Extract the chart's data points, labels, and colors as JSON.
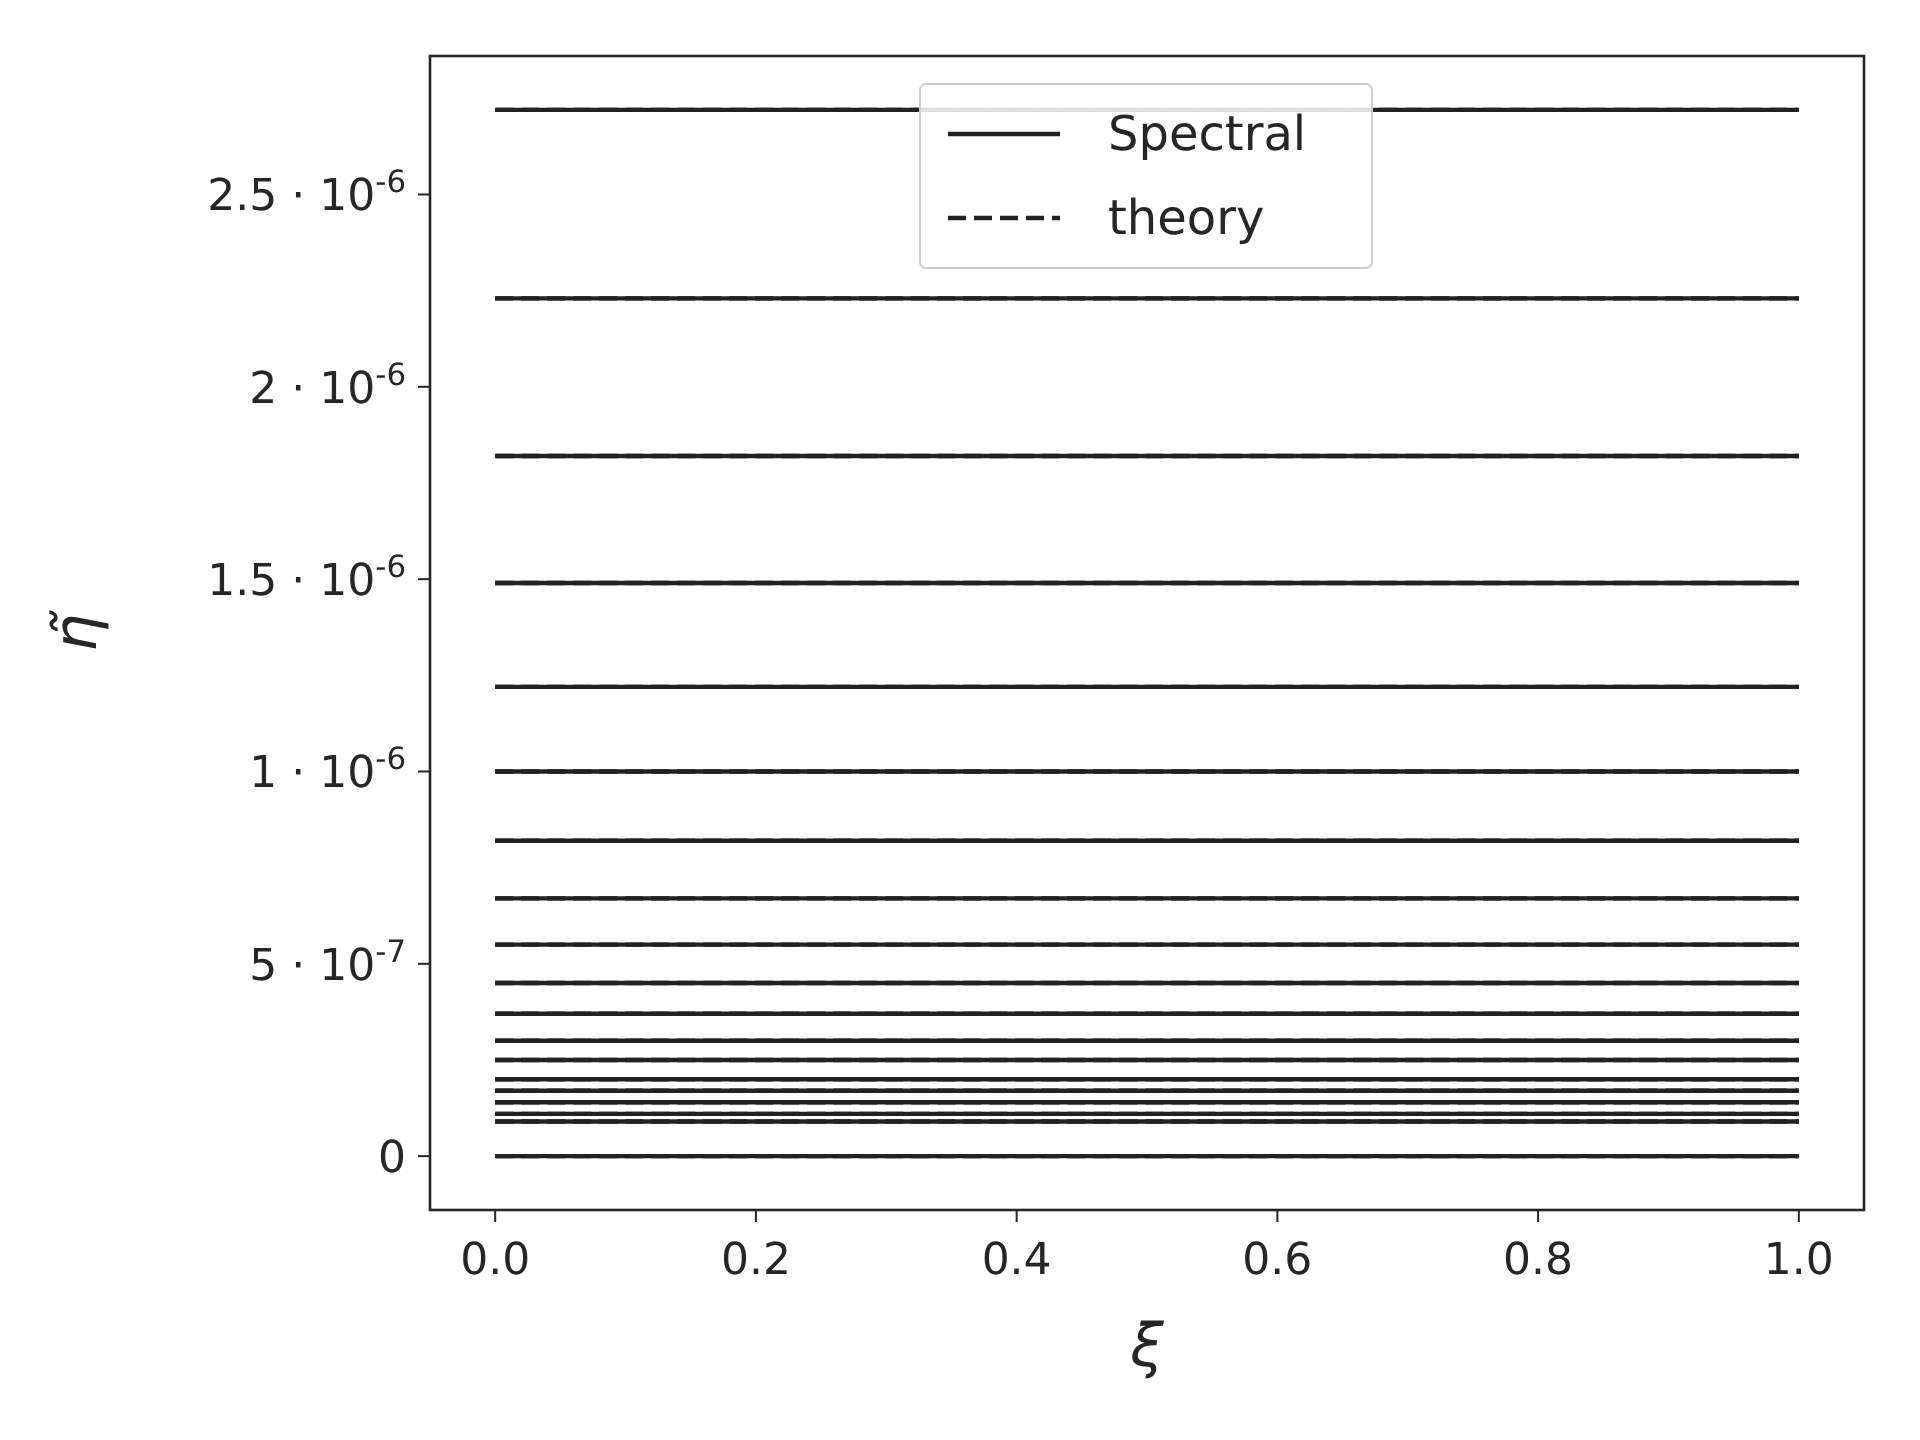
{
  "chart_data": {
    "type": "line",
    "xlabel": "ξ",
    "ylabel": "η̃",
    "x": [
      0,
      1
    ],
    "xlim": [
      -0.05,
      1.05
    ],
    "xticks": [
      {
        "value": 0,
        "label": "0.0"
      },
      0.2,
      0.4,
      0.6,
      0.8,
      {
        "value": 1,
        "label": "1.0"
      }
    ],
    "ylim": [
      -1.4e-07,
      2.86e-06
    ],
    "yticks": [
      0,
      {
        "value": 5e-07,
        "label": "5 · 10$^{-7}$"
      },
      {
        "value": 1e-06,
        "label": "1 · 10$^{-6}$"
      },
      {
        "value": 1.5e-06,
        "label": "1.5 · 10$^{-6}$"
      },
      {
        "value": 2e-06,
        "label": "2 · 10$^{-6}$"
      },
      {
        "value": 2.5e-06,
        "label": "2.5 · 10$^{-6}$"
      }
    ],
    "grid": false,
    "legend": "top",
    "marker": "none",
    "series": [
      {
        "name": "Spectral",
        "color": "#222222",
        "line_style": "solid",
        "values": [
          2.72e-06,
          2.72e-06
        ]
      },
      {
        "name": "theory",
        "color": "#222222",
        "line_style": "dashed",
        "values": [
          2.72e-06,
          2.72e-06
        ]
      },
      {
        "color": "#222222",
        "line_style": "solid",
        "values": [
          2.23e-06,
          2.23e-06
        ]
      },
      {
        "color": "#222222",
        "line_style": "dashed",
        "values": [
          2.23e-06,
          2.23e-06
        ]
      },
      {
        "color": "#222222",
        "line_style": "solid",
        "values": [
          1.82e-06,
          1.82e-06
        ]
      },
      {
        "color": "#222222",
        "line_style": "dashed",
        "values": [
          1.82e-06,
          1.82e-06
        ]
      },
      {
        "color": "#222222",
        "line_style": "solid",
        "values": [
          1.49e-06,
          1.49e-06
        ]
      },
      {
        "color": "#222222",
        "line_style": "dashed",
        "values": [
          1.49e-06,
          1.49e-06
        ]
      },
      {
        "color": "#222222",
        "line_style": "solid",
        "values": [
          1.22e-06,
          1.22e-06
        ]
      },
      {
        "color": "#222222",
        "line_style": "dashed",
        "values": [
          1.22e-06,
          1.22e-06
        ]
      },
      {
        "color": "#222222",
        "line_style": "solid",
        "values": [
          1e-06,
          1e-06
        ]
      },
      {
        "color": "#222222",
        "line_style": "dashed",
        "values": [
          1e-06,
          1e-06
        ]
      },
      {
        "color": "#222222",
        "line_style": "solid",
        "values": [
          8.2e-07,
          8.2e-07
        ]
      },
      {
        "color": "#222222",
        "line_style": "dashed",
        "values": [
          8.2e-07,
          8.2e-07
        ]
      },
      {
        "color": "#222222",
        "line_style": "solid",
        "values": [
          6.7e-07,
          6.7e-07
        ]
      },
      {
        "color": "#222222",
        "line_style": "dashed",
        "values": [
          6.7e-07,
          6.7e-07
        ]
      },
      {
        "color": "#222222",
        "line_style": "solid",
        "values": [
          5.5e-07,
          5.5e-07
        ]
      },
      {
        "color": "#222222",
        "line_style": "dashed",
        "values": [
          5.5e-07,
          5.5e-07
        ]
      },
      {
        "color": "#222222",
        "line_style": "solid",
        "values": [
          4.5e-07,
          4.5e-07
        ]
      },
      {
        "color": "#222222",
        "line_style": "dashed",
        "values": [
          4.5e-07,
          4.5e-07
        ]
      },
      {
        "color": "#222222",
        "line_style": "solid",
        "values": [
          3.7e-07,
          3.7e-07
        ]
      },
      {
        "color": "#222222",
        "line_style": "dashed",
        "values": [
          3.7e-07,
          3.7e-07
        ]
      },
      {
        "color": "#222222",
        "line_style": "solid",
        "values": [
          3e-07,
          3e-07
        ]
      },
      {
        "color": "#222222",
        "line_style": "dashed",
        "values": [
          3e-07,
          3e-07
        ]
      },
      {
        "color": "#222222",
        "line_style": "solid",
        "values": [
          2.5e-07,
          2.5e-07
        ]
      },
      {
        "color": "#222222",
        "line_style": "dashed",
        "values": [
          2.5e-07,
          2.5e-07
        ]
      },
      {
        "color": "#222222",
        "line_style": "solid",
        "values": [
          2e-07,
          2e-07
        ]
      },
      {
        "color": "#222222",
        "line_style": "dashed",
        "values": [
          2e-07,
          2e-07
        ]
      },
      {
        "color": "#222222",
        "line_style": "solid",
        "values": [
          1.7e-07,
          1.7e-07
        ]
      },
      {
        "color": "#222222",
        "line_style": "dashed",
        "values": [
          1.7e-07,
          1.7e-07
        ]
      },
      {
        "color": "#222222",
        "line_style": "solid",
        "values": [
          1.4e-07,
          1.4e-07
        ]
      },
      {
        "color": "#222222",
        "line_style": "dashed",
        "values": [
          1.4e-07,
          1.4e-07
        ]
      },
      {
        "color": "#222222",
        "line_style": "solid",
        "values": [
          1.1e-07,
          1.1e-07
        ]
      },
      {
        "color": "#222222",
        "line_style": "dashed",
        "values": [
          1.1e-07,
          1.1e-07
        ]
      },
      {
        "color": "#222222",
        "line_style": "solid",
        "values": [
          9e-08,
          9e-08
        ]
      },
      {
        "color": "#222222",
        "line_style": "dashed",
        "values": [
          9e-08,
          9e-08
        ]
      },
      {
        "color": "#222222",
        "line_style": "solid",
        "values": [
          0,
          0
        ]
      },
      {
        "color": "#222222",
        "line_style": "dashed",
        "values": [
          0,
          0
        ]
      }
    ]
  }
}
